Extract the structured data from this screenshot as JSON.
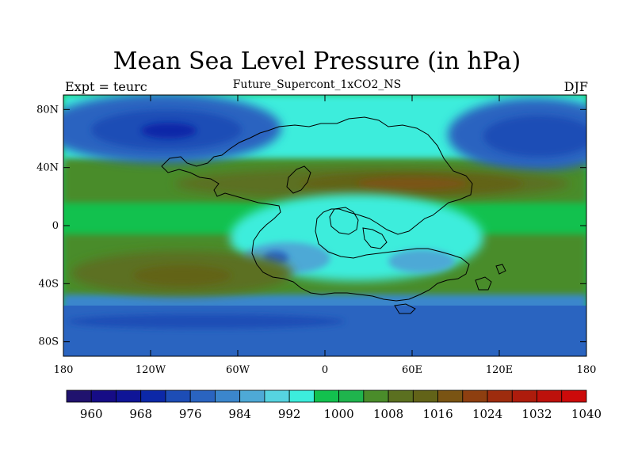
{
  "title": "Mean Sea Level Pressure (in hPa)",
  "subtitle": "Future_Supercont_1xCO2_NS",
  "left_label": "Expt = teurc",
  "right_label": "DJF",
  "lat_ticks": [
    {
      "label": "80N",
      "value": 80
    },
    {
      "label": "40N",
      "value": 40
    },
    {
      "label": "0",
      "value": 0
    },
    {
      "label": "40S",
      "value": -40
    },
    {
      "label": "80S",
      "value": -80
    }
  ],
  "lon_ticks": [
    {
      "label": "180",
      "value": -180
    },
    {
      "label": "120W",
      "value": -120
    },
    {
      "label": "60W",
      "value": -60
    },
    {
      "label": "0",
      "value": 0
    },
    {
      "label": "60E",
      "value": 60
    },
    {
      "label": "120E",
      "value": 120
    },
    {
      "label": "180",
      "value": 180
    }
  ],
  "colorbar": {
    "colors": [
      "#20126e",
      "#160c86",
      "#0f1597",
      "#0c28a8",
      "#1d4db6",
      "#2a64c0",
      "#3b86cc",
      "#4ea9d6",
      "#56d3e0",
      "#3ceddc",
      "#12c14e",
      "#1fb44d",
      "#4a8c2a",
      "#5b7020",
      "#626318",
      "#7a5413",
      "#8e3f10",
      "#9e2c0e",
      "#ae1c0c",
      "#bd110b",
      "#cc0a0a"
    ],
    "labels": [
      "960",
      "968",
      "976",
      "984",
      "992",
      "1000",
      "1008",
      "1016",
      "1024",
      "1032",
      "1040"
    ]
  }
}
